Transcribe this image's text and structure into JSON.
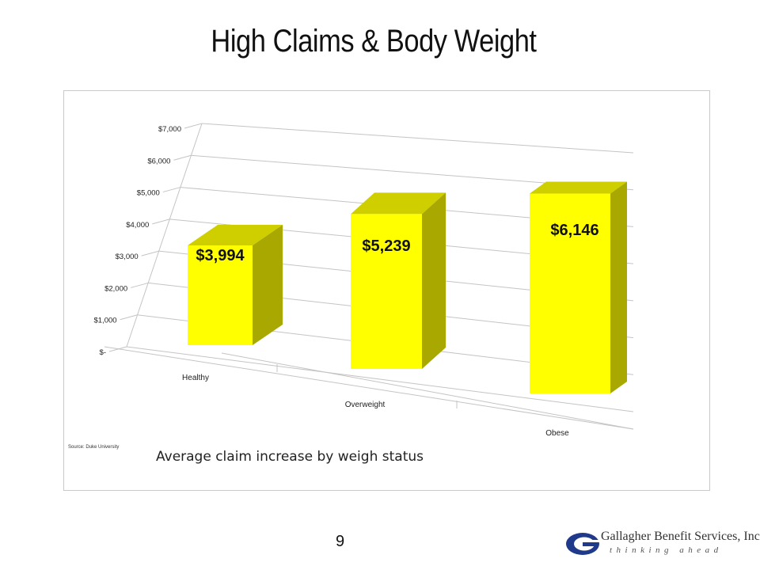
{
  "slide": {
    "title": "High Claims & Body Weight",
    "page_number": "9"
  },
  "logo": {
    "name": "Gallagher Benefit Services, Inc.",
    "tagline": "thinking ahead",
    "mark": "G"
  },
  "colors": {
    "bar_front": "#ffff00",
    "bar_top": "#cfcf00",
    "bar_side": "#a8a800",
    "grid": "#c4c4c4",
    "text": "#222222"
  },
  "chart_data": {
    "type": "bar",
    "title": "",
    "categories": [
      "Healthy",
      "Overweight",
      "Obese"
    ],
    "values": [
      3994,
      5239,
      6146
    ],
    "data_labels": [
      "$3,994",
      "$5,239",
      "$6,146"
    ],
    "yticks": [
      0,
      1000,
      2000,
      3000,
      4000,
      5000,
      6000,
      7000
    ],
    "ytick_labels": [
      "$-",
      "$1,000",
      "$2,000",
      "$3,000",
      "$4,000",
      "$5,000",
      "$6,000",
      "$7,000"
    ],
    "ylim": [
      0,
      7000
    ],
    "grid": true,
    "three_d": true,
    "caption": "Average claim increase by weigh status",
    "source": "Source: Duke University"
  }
}
